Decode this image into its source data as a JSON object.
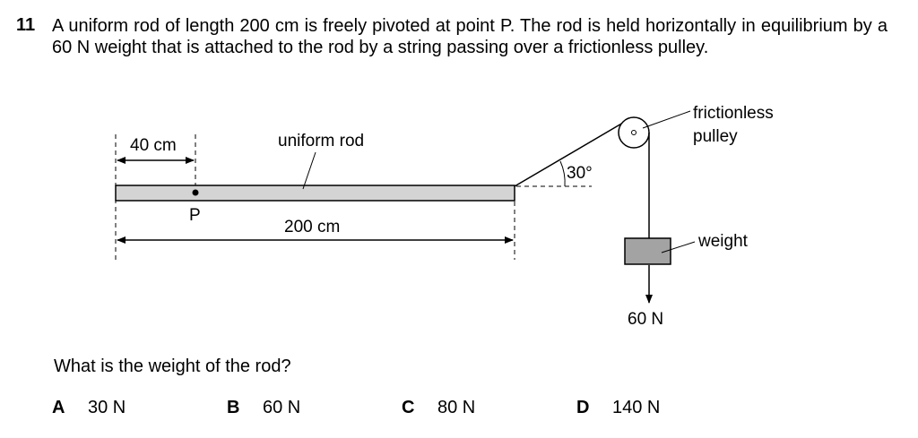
{
  "question": {
    "number": "11",
    "stem": "A uniform rod of length 200 cm is freely pivoted at point P. The rod is held horizontally in equilibrium by a 60 N weight that is attached to the rod by a string passing over a frictionless pulley.",
    "prompt": "What is the weight of the rod?"
  },
  "diagram": {
    "label_40cm": "40 cm",
    "label_uniform_rod": "uniform rod",
    "label_P": "P",
    "label_200cm": "200 cm",
    "label_angle": "30°",
    "label_pulley_line1": "frictionless",
    "label_pulley_line2": "pulley",
    "label_weight": "weight",
    "label_force": "60 N"
  },
  "options": [
    {
      "letter": "A",
      "text": "30 N"
    },
    {
      "letter": "B",
      "text": "60 N"
    },
    {
      "letter": "C",
      "text": "80 N"
    },
    {
      "letter": "D",
      "text": "140 N"
    }
  ]
}
